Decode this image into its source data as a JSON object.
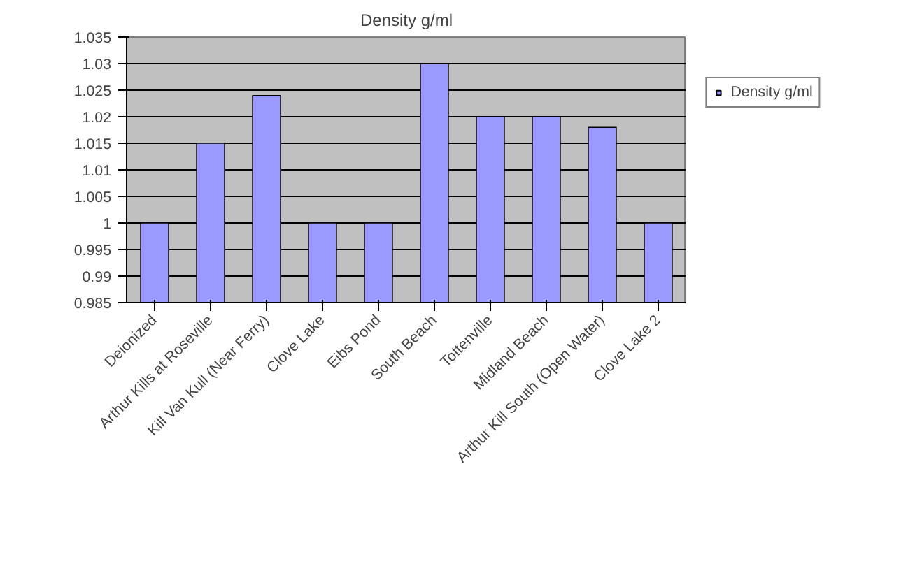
{
  "chart_data": {
    "type": "bar",
    "title": "Density g/ml",
    "categories": [
      "Deionized",
      "Arthur Kills at Roseville",
      "Kill Van Kull (Near Ferry)",
      "Clove Lake",
      "Eibs Pond",
      "South Beach",
      "Tottenville",
      "Midland Beach",
      "Arthur Kill South (Open Water)",
      "Clove Lake 2"
    ],
    "series": [
      {
        "name": "Density g/ml",
        "color": "#9999ff",
        "values": [
          1.0,
          1.015,
          1.024,
          1.0,
          1.0,
          1.03,
          1.02,
          1.02,
          1.018,
          1.0
        ]
      }
    ],
    "ylim": [
      0.985,
      1.035
    ],
    "yticks": [
      0.985,
      0.99,
      0.995,
      1,
      1.005,
      1.01,
      1.015,
      1.02,
      1.025,
      1.03,
      1.035
    ],
    "grid": "y",
    "legend": "right"
  }
}
